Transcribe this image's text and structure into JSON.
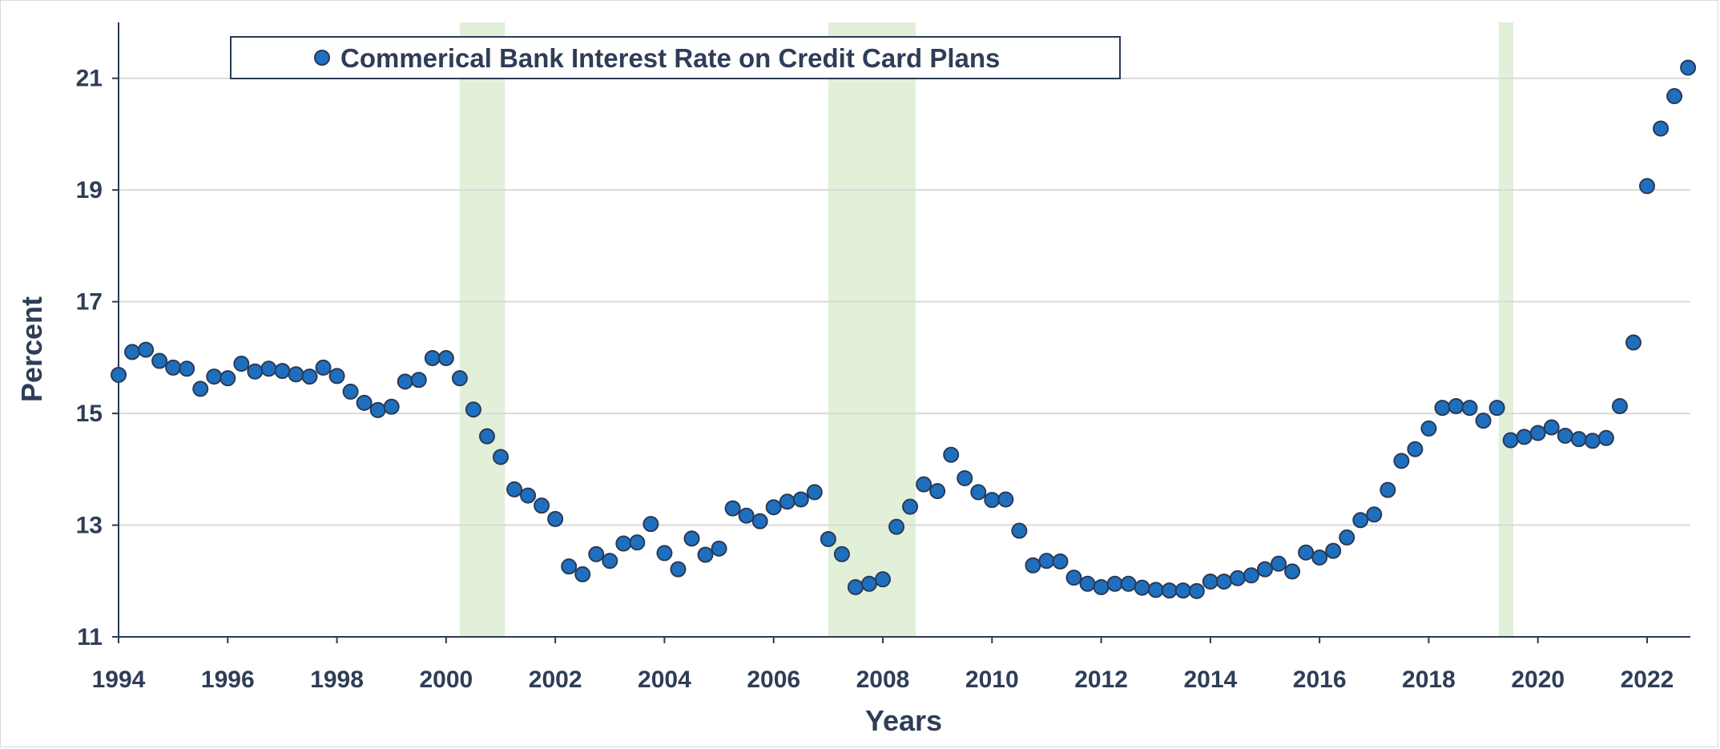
{
  "chart_data": {
    "type": "scatter",
    "legend": {
      "label": "Commerical Bank Interest Rate on Credit Card Plans",
      "position": "top-left"
    },
    "xlabel": "Years",
    "ylabel": "Percent",
    "xlim": [
      1994,
      2022.85
    ],
    "ylim": [
      11,
      22
    ],
    "x_ticks": [
      1994,
      1996,
      1998,
      2000,
      2002,
      2004,
      2006,
      2008,
      2010,
      2012,
      2014,
      2016,
      2018,
      2020,
      2022
    ],
    "y_ticks": [
      11,
      13,
      15,
      17,
      19,
      21
    ],
    "grid": "horizontal",
    "colors": {
      "marker_fill": "#1f6fbf",
      "marker_edge": "#2a3a55",
      "recession_band": "#e2efd9",
      "gridline": "#d9d9d9",
      "text": "#2f3d57"
    },
    "recession_bands": [
      [
        2000.25,
        2001.08
      ],
      [
        2007.0,
        2008.6
      ],
      [
        2019.28,
        2019.55
      ]
    ],
    "series": [
      {
        "name": "Commerical Bank Interest Rate on Credit Card Plans",
        "points": [
          [
            1994.0,
            15.69
          ],
          [
            1994.25,
            16.1
          ],
          [
            1994.5,
            16.14
          ],
          [
            1994.75,
            15.94
          ],
          [
            1995.0,
            15.82
          ],
          [
            1995.25,
            15.8
          ],
          [
            1995.5,
            15.44
          ],
          [
            1995.75,
            15.66
          ],
          [
            1996.0,
            15.63
          ],
          [
            1996.25,
            15.89
          ],
          [
            1996.5,
            15.75
          ],
          [
            1996.75,
            15.8
          ],
          [
            1997.0,
            15.76
          ],
          [
            1997.25,
            15.7
          ],
          [
            1997.5,
            15.66
          ],
          [
            1997.75,
            15.82
          ],
          [
            1998.0,
            15.67
          ],
          [
            1998.25,
            15.39
          ],
          [
            1998.5,
            15.19
          ],
          [
            1998.75,
            15.06
          ],
          [
            1999.0,
            15.12
          ],
          [
            1999.25,
            15.57
          ],
          [
            1999.5,
            15.6
          ],
          [
            1999.75,
            15.99
          ],
          [
            2000.0,
            15.99
          ],
          [
            2000.25,
            15.63
          ],
          [
            2000.5,
            15.07
          ],
          [
            2000.75,
            14.59
          ],
          [
            2001.0,
            14.22
          ],
          [
            2001.25,
            13.64
          ],
          [
            2001.5,
            13.53
          ],
          [
            2001.75,
            13.35
          ],
          [
            2002.0,
            13.11
          ],
          [
            2002.25,
            12.26
          ],
          [
            2002.5,
            12.12
          ],
          [
            2002.75,
            12.48
          ],
          [
            2003.0,
            12.36
          ],
          [
            2003.25,
            12.67
          ],
          [
            2003.5,
            12.69
          ],
          [
            2003.75,
            13.02
          ],
          [
            2004.0,
            12.5
          ],
          [
            2004.25,
            12.21
          ],
          [
            2004.5,
            12.76
          ],
          [
            2004.75,
            12.47
          ],
          [
            2005.0,
            12.58
          ],
          [
            2005.25,
            13.3
          ],
          [
            2005.5,
            13.17
          ],
          [
            2005.75,
            13.07
          ],
          [
            2006.0,
            13.32
          ],
          [
            2006.25,
            13.42
          ],
          [
            2006.5,
            13.46
          ],
          [
            2006.75,
            13.59
          ],
          [
            2007.0,
            12.75
          ],
          [
            2007.25,
            12.48
          ],
          [
            2007.5,
            11.89
          ],
          [
            2007.75,
            11.95
          ],
          [
            2008.0,
            12.03
          ],
          [
            2008.25,
            12.97
          ],
          [
            2008.5,
            13.33
          ],
          [
            2008.75,
            13.73
          ],
          [
            2009.0,
            13.61
          ],
          [
            2009.25,
            14.26
          ],
          [
            2009.5,
            13.84
          ],
          [
            2009.75,
            13.59
          ],
          [
            2010.0,
            13.45
          ],
          [
            2010.25,
            13.46
          ],
          [
            2010.5,
            12.9
          ],
          [
            2010.75,
            12.28
          ],
          [
            2011.0,
            12.36
          ],
          [
            2011.25,
            12.35
          ],
          [
            2011.5,
            12.06
          ],
          [
            2011.75,
            11.95
          ],
          [
            2012.0,
            11.89
          ],
          [
            2012.25,
            11.95
          ],
          [
            2012.5,
            11.95
          ],
          [
            2012.75,
            11.88
          ],
          [
            2013.0,
            11.84
          ],
          [
            2013.25,
            11.83
          ],
          [
            2013.5,
            11.83
          ],
          [
            2013.75,
            11.82
          ],
          [
            2014.0,
            11.99
          ],
          [
            2014.25,
            11.99
          ],
          [
            2014.5,
            12.05
          ],
          [
            2014.75,
            12.1
          ],
          [
            2015.0,
            12.21
          ],
          [
            2015.25,
            12.31
          ],
          [
            2015.5,
            12.17
          ],
          [
            2015.75,
            12.51
          ],
          [
            2016.0,
            12.42
          ],
          [
            2016.25,
            12.54
          ],
          [
            2016.5,
            12.78
          ],
          [
            2016.75,
            13.09
          ],
          [
            2017.0,
            13.19
          ],
          [
            2017.25,
            13.63
          ],
          [
            2017.5,
            14.15
          ],
          [
            2017.75,
            14.36
          ],
          [
            2018.0,
            14.73
          ],
          [
            2018.25,
            15.1
          ],
          [
            2018.5,
            15.13
          ],
          [
            2018.75,
            15.1
          ],
          [
            2019.0,
            14.87
          ],
          [
            2019.25,
            15.1
          ],
          [
            2019.5,
            14.52
          ],
          [
            2019.75,
            14.58
          ],
          [
            2020.0,
            14.65
          ],
          [
            2020.25,
            14.75
          ],
          [
            2020.5,
            14.6
          ],
          [
            2020.75,
            14.54
          ],
          [
            2021.0,
            14.51
          ],
          [
            2021.25,
            14.56
          ],
          [
            2021.5,
            15.13
          ],
          [
            2021.75,
            16.27
          ],
          [
            2022.0,
            19.07
          ],
          [
            2022.25,
            20.1
          ],
          [
            2022.5,
            20.68
          ],
          [
            2022.75,
            21.19
          ]
        ]
      }
    ]
  }
}
